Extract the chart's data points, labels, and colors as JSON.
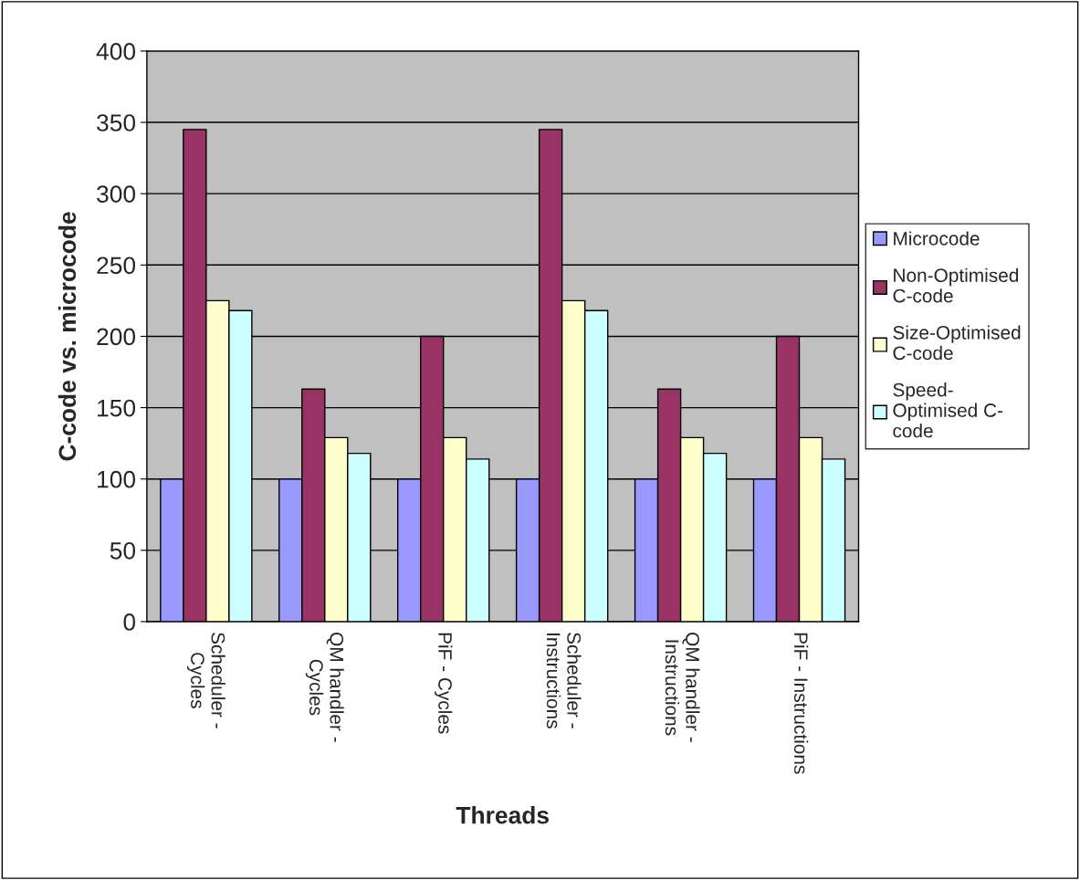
{
  "chart_data": {
    "type": "bar",
    "xlabel": "Threads",
    "ylabel": "C-code vs. microcode",
    "categories": [
      "Scheduler -\nCycles",
      "QM handler -\nCycles",
      "PiF - Cycles",
      "Scheduler -\nInstructions",
      "QM handler -\nInstructions",
      "PiF - Instructions"
    ],
    "series": [
      {
        "name": "Microcode",
        "color": "#9999ff",
        "values": [
          100,
          100,
          100,
          100,
          100,
          100
        ]
      },
      {
        "name": "Non-Optimised\nC-code",
        "color": "#993366",
        "values": [
          345,
          163,
          200,
          345,
          163,
          200
        ]
      },
      {
        "name": "Size-Optimised\nC-code",
        "color": "#ffffcc",
        "values": [
          225,
          129,
          129,
          225,
          129,
          129
        ]
      },
      {
        "name": "Speed-\nOptimised C-\ncode",
        "color": "#ccffff",
        "values": [
          218,
          118,
          114,
          218,
          118,
          114
        ]
      }
    ],
    "ylim": [
      0,
      400
    ],
    "yticks": [
      0,
      50,
      100,
      150,
      200,
      250,
      300,
      350,
      400
    ],
    "grid": "y",
    "legend": "right"
  }
}
